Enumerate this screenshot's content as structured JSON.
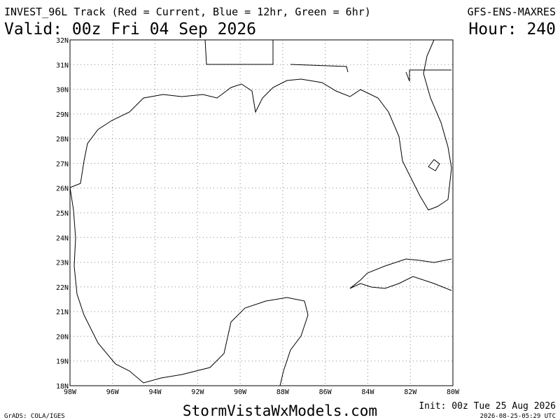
{
  "header": {
    "title": "INVEST_96L Track (Red = Current, Blue = 12hr, Green = 6hr)",
    "model": "GFS-ENS-MAXRES",
    "valid": "Valid: 00z Fri 04 Sep 2026",
    "hour": "Hour: 240"
  },
  "map": {
    "lat_labels": [
      "32N",
      "31N",
      "30N",
      "29N",
      "28N",
      "27N",
      "26N",
      "25N",
      "24N",
      "23N",
      "22N",
      "21N",
      "20N",
      "19N",
      "18N"
    ],
    "lon_labels": [
      "98W",
      "96W",
      "94W",
      "92W",
      "90W",
      "88W",
      "86W",
      "84W",
      "82W",
      "80W"
    ]
  },
  "footer": {
    "credit": "GrADS: COLA/IGES",
    "site": "StormVistaWxModels.com",
    "init": "Init: 00z Tue 25 Aug 2026",
    "stamp": "2026-08-25-05:29 UTC"
  }
}
